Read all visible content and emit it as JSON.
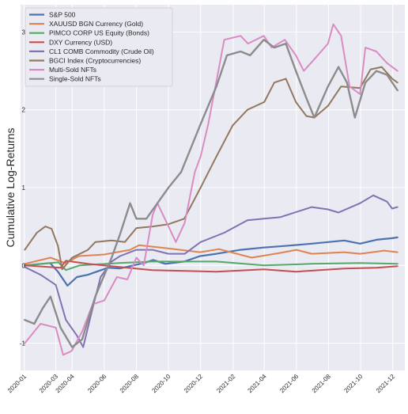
{
  "chart_data": {
    "type": "line",
    "title": "",
    "xlabel": "",
    "ylabel": "Cumulative Log-Returns",
    "xlim": [
      "2019-12-25",
      "2021-12-24"
    ],
    "ylim": [
      -1.35,
      3.35
    ],
    "y_ticks": [
      -1,
      0,
      1,
      2,
      3
    ],
    "x_ticks": [
      "2020-01",
      "2020-03",
      "2020-04",
      "2020-06",
      "2020-08",
      "2020-10",
      "2020-12",
      "2021-02",
      "2021-04",
      "2021-06",
      "2021-08",
      "2021-10",
      "2021-12"
    ],
    "grid": true,
    "legend_position": "top-left",
    "series": [
      {
        "name": "S&P 500",
        "color": "#4c72b0",
        "width": 2.2,
        "points": [
          [
            "2020-01-02",
            0.0
          ],
          [
            "2020-02-19",
            0.03
          ],
          [
            "2020-03-05",
            -0.08
          ],
          [
            "2020-03-23",
            -0.26
          ],
          [
            "2020-04-10",
            -0.15
          ],
          [
            "2020-05-01",
            -0.12
          ],
          [
            "2020-06-08",
            -0.03
          ],
          [
            "2020-06-30",
            -0.04
          ],
          [
            "2020-08-15",
            0.03
          ],
          [
            "2020-09-02",
            0.07
          ],
          [
            "2020-09-25",
            0.02
          ],
          [
            "2020-10-31",
            0.05
          ],
          [
            "2020-11-30",
            0.12
          ],
          [
            "2020-12-31",
            0.15
          ],
          [
            "2021-02-15",
            0.2
          ],
          [
            "2021-03-31",
            0.23
          ],
          [
            "2021-05-10",
            0.25
          ],
          [
            "2021-06-30",
            0.28
          ],
          [
            "2021-08-31",
            0.32
          ],
          [
            "2021-09-30",
            0.28
          ],
          [
            "2021-10-31",
            0.33
          ],
          [
            "2021-11-30",
            0.35
          ],
          [
            "2021-12-10",
            0.36
          ]
        ]
      },
      {
        "name": "XAUUSD BGN Currency (Gold)",
        "color": "#dd8452",
        "width": 2.0,
        "points": [
          [
            "2020-01-02",
            0.02
          ],
          [
            "2020-02-20",
            0.1
          ],
          [
            "2020-03-19",
            0.03
          ],
          [
            "2020-04-14",
            0.12
          ],
          [
            "2020-06-01",
            0.14
          ],
          [
            "2020-07-20",
            0.2
          ],
          [
            "2020-08-06",
            0.26
          ],
          [
            "2020-09-30",
            0.22
          ],
          [
            "2020-11-30",
            0.17
          ],
          [
            "2021-01-05",
            0.21
          ],
          [
            "2021-03-08",
            0.1
          ],
          [
            "2021-04-30",
            0.16
          ],
          [
            "2021-06-01",
            0.2
          ],
          [
            "2021-06-30",
            0.15
          ],
          [
            "2021-08-31",
            0.17
          ],
          [
            "2021-09-30",
            0.15
          ],
          [
            "2021-11-15",
            0.19
          ],
          [
            "2021-12-10",
            0.17
          ]
        ]
      },
      {
        "name": "PIMCO CORP US Equity (Bonds)",
        "color": "#55a868",
        "width": 2.0,
        "points": [
          [
            "2020-01-02",
            0.0
          ],
          [
            "2020-03-06",
            0.04
          ],
          [
            "2020-03-20",
            -0.06
          ],
          [
            "2020-04-15",
            0.0
          ],
          [
            "2020-06-30",
            0.03
          ],
          [
            "2020-08-31",
            0.05
          ],
          [
            "2020-12-31",
            0.05
          ],
          [
            "2021-03-31",
            0.0
          ],
          [
            "2021-06-30",
            0.02
          ],
          [
            "2021-09-30",
            0.03
          ],
          [
            "2021-12-10",
            0.02
          ]
        ]
      },
      {
        "name": "DXY Currency (USD)",
        "color": "#c44e52",
        "width": 2.0,
        "points": [
          [
            "2020-01-02",
            0.0
          ],
          [
            "2020-03-10",
            -0.03
          ],
          [
            "2020-03-20",
            0.06
          ],
          [
            "2020-05-01",
            0.02
          ],
          [
            "2020-06-30",
            -0.02
          ],
          [
            "2020-08-31",
            -0.06
          ],
          [
            "2020-12-31",
            -0.08
          ],
          [
            "2021-03-31",
            -0.05
          ],
          [
            "2021-05-31",
            -0.08
          ],
          [
            "2021-08-31",
            -0.04
          ],
          [
            "2021-10-31",
            -0.03
          ],
          [
            "2021-12-10",
            -0.01
          ]
        ]
      },
      {
        "name": "CL1 COMB Commodity (Crude Oil)",
        "color": "#8172b3",
        "width": 2.0,
        "points": [
          [
            "2020-01-02",
            -0.02
          ],
          [
            "2020-02-01",
            -0.12
          ],
          [
            "2020-03-01",
            -0.25
          ],
          [
            "2020-03-20",
            -0.7
          ],
          [
            "2020-04-10",
            -0.9
          ],
          [
            "2020-04-22",
            -1.05
          ],
          [
            "2020-05-08",
            -0.6
          ],
          [
            "2020-05-25",
            -0.15
          ],
          [
            "2020-06-15",
            0.05
          ],
          [
            "2020-07-01",
            0.12
          ],
          [
            "2020-08-01",
            0.2
          ],
          [
            "2020-09-01",
            0.2
          ],
          [
            "2020-10-01",
            0.15
          ],
          [
            "2020-11-01",
            0.15
          ],
          [
            "2020-12-01",
            0.3
          ],
          [
            "2021-01-15",
            0.42
          ],
          [
            "2021-02-28",
            0.58
          ],
          [
            "2021-03-31",
            0.6
          ],
          [
            "2021-05-01",
            0.62
          ],
          [
            "2021-06-30",
            0.75
          ],
          [
            "2021-07-31",
            0.72
          ],
          [
            "2021-08-20",
            0.68
          ],
          [
            "2021-09-30",
            0.8
          ],
          [
            "2021-10-25",
            0.9
          ],
          [
            "2021-11-20",
            0.82
          ],
          [
            "2021-11-30",
            0.73
          ],
          [
            "2021-12-10",
            0.75
          ]
        ]
      },
      {
        "name": "BGCI Index (Cryptocurrencies)",
        "color": "#937860",
        "width": 2.0,
        "points": [
          [
            "2020-01-02",
            0.2
          ],
          [
            "2020-01-25",
            0.42
          ],
          [
            "2020-02-10",
            0.5
          ],
          [
            "2020-02-22",
            0.47
          ],
          [
            "2020-03-05",
            0.25
          ],
          [
            "2020-03-13",
            -0.05
          ],
          [
            "2020-04-01",
            0.1
          ],
          [
            "2020-05-01",
            0.2
          ],
          [
            "2020-05-15",
            0.3
          ],
          [
            "2020-06-15",
            0.32
          ],
          [
            "2020-07-10",
            0.3
          ],
          [
            "2020-08-01",
            0.48
          ],
          [
            "2020-09-01",
            0.5
          ],
          [
            "2020-10-01",
            0.53
          ],
          [
            "2020-10-31",
            0.6
          ],
          [
            "2020-12-01",
            1.0
          ],
          [
            "2020-12-31",
            1.4
          ],
          [
            "2021-01-31",
            1.8
          ],
          [
            "2021-02-28",
            2.0
          ],
          [
            "2021-04-01",
            2.1
          ],
          [
            "2021-04-20",
            2.35
          ],
          [
            "2021-05-12",
            2.4
          ],
          [
            "2021-05-31",
            2.1
          ],
          [
            "2021-06-20",
            1.92
          ],
          [
            "2021-07-05",
            1.9
          ],
          [
            "2021-07-31",
            2.05
          ],
          [
            "2021-08-25",
            2.3
          ],
          [
            "2021-09-30",
            2.28
          ],
          [
            "2021-10-20",
            2.52
          ],
          [
            "2021-11-10",
            2.55
          ],
          [
            "2021-11-30",
            2.4
          ],
          [
            "2021-12-10",
            2.35
          ]
        ]
      },
      {
        "name": "Multi-Sold NFTs",
        "color": "#da8bc3",
        "width": 2.0,
        "points": [
          [
            "2020-01-02",
            -1.0
          ],
          [
            "2020-02-01",
            -0.75
          ],
          [
            "2020-03-01",
            -0.8
          ],
          [
            "2020-03-15",
            -1.15
          ],
          [
            "2020-03-31",
            -1.1
          ],
          [
            "2020-04-20",
            -0.85
          ],
          [
            "2020-05-10",
            -0.5
          ],
          [
            "2020-06-01",
            -0.45
          ],
          [
            "2020-06-25",
            -0.15
          ],
          [
            "2020-07-15",
            -0.18
          ],
          [
            "2020-08-01",
            0.1
          ],
          [
            "2020-08-15",
            0.0
          ],
          [
            "2020-09-01",
            0.65
          ],
          [
            "2020-09-10",
            0.8
          ],
          [
            "2020-10-01",
            0.5
          ],
          [
            "2020-10-15",
            0.3
          ],
          [
            "2020-11-01",
            0.55
          ],
          [
            "2020-11-20",
            1.2
          ],
          [
            "2020-12-01",
            1.4
          ],
          [
            "2020-12-15",
            1.8
          ],
          [
            "2021-01-01",
            2.4
          ],
          [
            "2021-01-15",
            2.9
          ],
          [
            "2021-02-15",
            2.95
          ],
          [
            "2021-03-01",
            2.85
          ],
          [
            "2021-03-31",
            2.95
          ],
          [
            "2021-04-15",
            2.8
          ],
          [
            "2021-05-10",
            2.9
          ],
          [
            "2021-05-31",
            2.7
          ],
          [
            "2021-06-15",
            2.5
          ],
          [
            "2021-07-05",
            2.65
          ],
          [
            "2021-07-31",
            2.85
          ],
          [
            "2021-08-10",
            3.1
          ],
          [
            "2021-08-25",
            2.95
          ],
          [
            "2021-09-10",
            2.3
          ],
          [
            "2021-09-30",
            2.2
          ],
          [
            "2021-10-10",
            2.8
          ],
          [
            "2021-10-31",
            2.75
          ],
          [
            "2021-11-20",
            2.6
          ],
          [
            "2021-12-10",
            2.5
          ]
        ]
      },
      {
        "name": "Single-Sold NFTs",
        "color": "#8c8c8c",
        "width": 2.4,
        "points": [
          [
            "2020-01-02",
            -0.7
          ],
          [
            "2020-01-20",
            -0.75
          ],
          [
            "2020-02-05",
            -0.55
          ],
          [
            "2020-02-20",
            -0.4
          ],
          [
            "2020-03-10",
            -0.8
          ],
          [
            "2020-04-01",
            -1.05
          ],
          [
            "2020-04-20",
            -0.95
          ],
          [
            "2020-05-15",
            -0.4
          ],
          [
            "2020-06-15",
            0.1
          ],
          [
            "2020-07-01",
            0.4
          ],
          [
            "2020-07-20",
            0.8
          ],
          [
            "2020-08-01",
            0.6
          ],
          [
            "2020-08-20",
            0.6
          ],
          [
            "2020-09-10",
            0.8
          ],
          [
            "2020-10-01",
            1.0
          ],
          [
            "2020-10-25",
            1.2
          ],
          [
            "2020-11-30",
            1.8
          ],
          [
            "2020-12-31",
            2.3
          ],
          [
            "2021-01-20",
            2.7
          ],
          [
            "2021-02-15",
            2.75
          ],
          [
            "2021-03-05",
            2.7
          ],
          [
            "2021-03-31",
            2.9
          ],
          [
            "2021-04-20",
            2.8
          ],
          [
            "2021-05-12",
            2.85
          ],
          [
            "2021-05-31",
            2.5
          ],
          [
            "2021-06-20",
            2.15
          ],
          [
            "2021-07-05",
            1.9
          ],
          [
            "2021-07-31",
            2.3
          ],
          [
            "2021-08-20",
            2.55
          ],
          [
            "2021-09-05",
            2.35
          ],
          [
            "2021-09-20",
            1.9
          ],
          [
            "2021-10-10",
            2.35
          ],
          [
            "2021-10-31",
            2.5
          ],
          [
            "2021-11-20",
            2.45
          ],
          [
            "2021-12-10",
            2.25
          ]
        ]
      }
    ]
  }
}
